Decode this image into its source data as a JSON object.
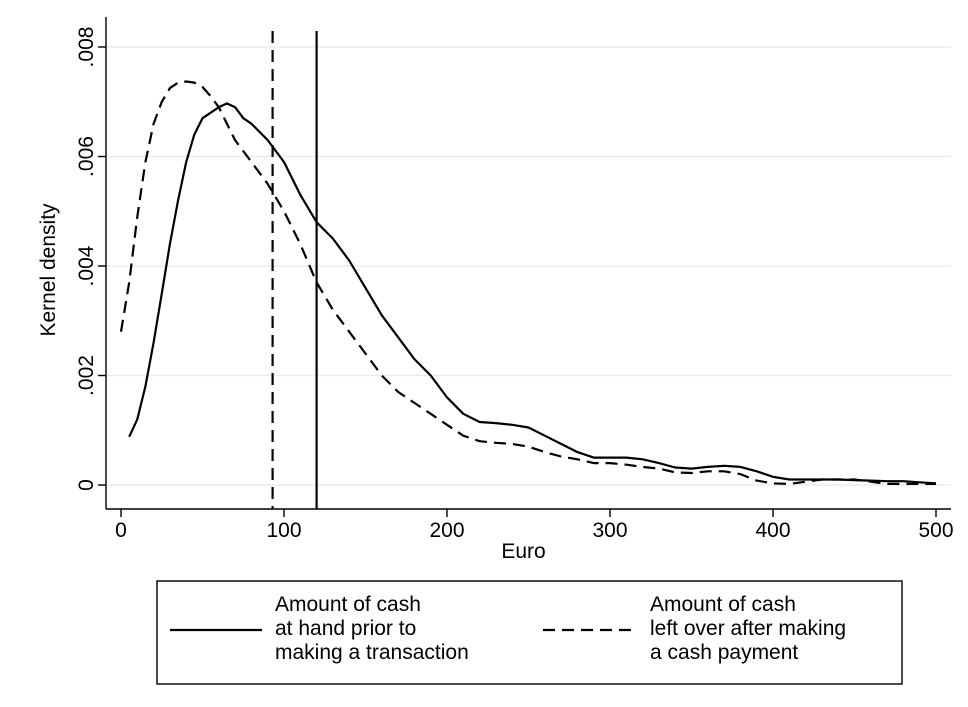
{
  "chart_data": {
    "type": "line",
    "title": "",
    "xlabel": "Euro",
    "ylabel": "Kernel density",
    "xlim": [
      0,
      500
    ],
    "ylim": [
      0,
      0.008
    ],
    "x_ticks": [
      0,
      100,
      200,
      300,
      400,
      500
    ],
    "x_tick_labels": [
      "0",
      "100",
      "200",
      "300",
      "400",
      "500"
    ],
    "y_ticks": [
      0,
      0.002,
      0.004,
      0.006,
      0.008
    ],
    "y_tick_labels": [
      "0",
      ".002",
      ".004",
      ".006",
      ".008"
    ],
    "grid": "horizontal",
    "legend_position": "bottom",
    "series": [
      {
        "name": "Amount of cash at hand prior to making a transaction",
        "legend_lines": [
          "Amount of cash",
          "at hand prior to",
          "making a transaction"
        ],
        "style": "solid",
        "color": "#000000",
        "points": [
          [
            5,
            0.00088
          ],
          [
            10,
            0.0012
          ],
          [
            15,
            0.0018
          ],
          [
            20,
            0.0026
          ],
          [
            25,
            0.0035
          ],
          [
            30,
            0.0044
          ],
          [
            35,
            0.0052
          ],
          [
            40,
            0.0059
          ],
          [
            45,
            0.0064
          ],
          [
            50,
            0.0067
          ],
          [
            55,
            0.0068
          ],
          [
            60,
            0.0069
          ],
          [
            65,
            0.00697
          ],
          [
            70,
            0.0069
          ],
          [
            75,
            0.0067
          ],
          [
            80,
            0.0066
          ],
          [
            90,
            0.0063
          ],
          [
            100,
            0.0059
          ],
          [
            110,
            0.0053
          ],
          [
            120,
            0.0048
          ],
          [
            130,
            0.0045
          ],
          [
            140,
            0.0041
          ],
          [
            150,
            0.0036
          ],
          [
            160,
            0.0031
          ],
          [
            170,
            0.0027
          ],
          [
            180,
            0.0023
          ],
          [
            190,
            0.002
          ],
          [
            200,
            0.0016
          ],
          [
            210,
            0.0013
          ],
          [
            220,
            0.00115
          ],
          [
            230,
            0.00113
          ],
          [
            240,
            0.0011
          ],
          [
            250,
            0.00105
          ],
          [
            260,
            0.0009
          ],
          [
            270,
            0.00075
          ],
          [
            280,
            0.0006
          ],
          [
            290,
            0.0005
          ],
          [
            300,
            0.0005
          ],
          [
            310,
            0.0005
          ],
          [
            320,
            0.00047
          ],
          [
            330,
            0.0004
          ],
          [
            340,
            0.00032
          ],
          [
            350,
            0.0003
          ],
          [
            360,
            0.00033
          ],
          [
            370,
            0.00035
          ],
          [
            380,
            0.00033
          ],
          [
            390,
            0.00025
          ],
          [
            400,
            0.00015
          ],
          [
            410,
            0.0001
          ],
          [
            420,
            0.0001
          ],
          [
            430,
            0.0001
          ],
          [
            440,
            0.0001
          ],
          [
            450,
            9e-05
          ],
          [
            460,
            8e-05
          ],
          [
            470,
            7e-05
          ],
          [
            480,
            7e-05
          ],
          [
            490,
            5e-05
          ],
          [
            500,
            3e-05
          ]
        ]
      },
      {
        "name": "Amount of cash left over after making a cash payment",
        "legend_lines": [
          "Amount of cash",
          "left over after making",
          "a cash payment"
        ],
        "style": "dashed",
        "color": "#000000",
        "points": [
          [
            0,
            0.0028
          ],
          [
            5,
            0.0037
          ],
          [
            10,
            0.0049
          ],
          [
            15,
            0.0059
          ],
          [
            20,
            0.0066
          ],
          [
            25,
            0.007
          ],
          [
            30,
            0.00725
          ],
          [
            35,
            0.00735
          ],
          [
            40,
            0.00737
          ],
          [
            45,
            0.00735
          ],
          [
            50,
            0.00727
          ],
          [
            55,
            0.0071
          ],
          [
            60,
            0.0069
          ],
          [
            65,
            0.0066
          ],
          [
            70,
            0.0063
          ],
          [
            80,
            0.0059
          ],
          [
            90,
            0.0055
          ],
          [
            100,
            0.005
          ],
          [
            110,
            0.0044
          ],
          [
            120,
            0.0037
          ],
          [
            130,
            0.0032
          ],
          [
            140,
            0.0028
          ],
          [
            150,
            0.0024
          ],
          [
            160,
            0.002
          ],
          [
            170,
            0.0017
          ],
          [
            180,
            0.0015
          ],
          [
            190,
            0.0013
          ],
          [
            200,
            0.0011
          ],
          [
            210,
            0.0009
          ],
          [
            220,
            0.0008
          ],
          [
            230,
            0.00077
          ],
          [
            240,
            0.00075
          ],
          [
            250,
            0.0007
          ],
          [
            260,
            0.0006
          ],
          [
            270,
            0.00052
          ],
          [
            280,
            0.00047
          ],
          [
            290,
            0.0004
          ],
          [
            300,
            0.0004
          ],
          [
            310,
            0.00037
          ],
          [
            320,
            0.00033
          ],
          [
            330,
            0.0003
          ],
          [
            340,
            0.00023
          ],
          [
            350,
            0.00022
          ],
          [
            360,
            0.00025
          ],
          [
            370,
            0.00025
          ],
          [
            380,
            0.0002
          ],
          [
            390,
            8e-05
          ],
          [
            400,
            3e-05
          ],
          [
            410,
            2e-05
          ],
          [
            420,
            6e-05
          ],
          [
            430,
            0.0001
          ],
          [
            440,
            0.0001
          ],
          [
            450,
            0.0001
          ],
          [
            460,
            6e-05
          ],
          [
            470,
            2e-05
          ],
          [
            480,
            2e-05
          ],
          [
            490,
            2e-05
          ],
          [
            500,
            2e-05
          ]
        ]
      }
    ],
    "reference_lines": [
      {
        "x": 93,
        "style": "dashed"
      },
      {
        "x": 120,
        "style": "solid"
      }
    ]
  }
}
